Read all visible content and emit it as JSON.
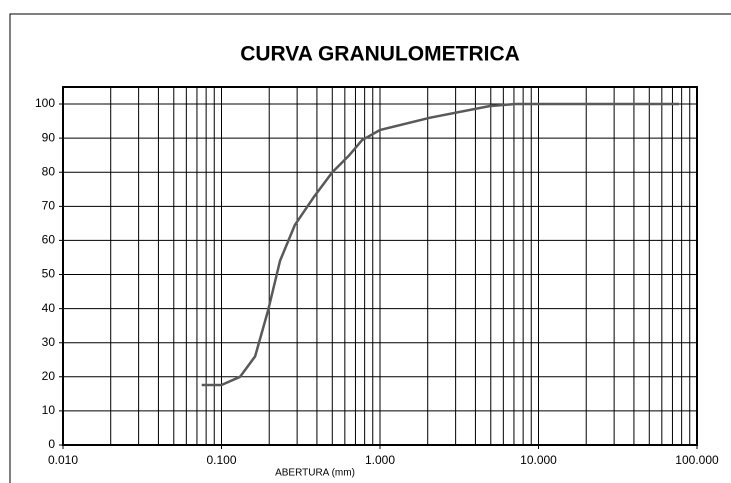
{
  "chart_data": {
    "type": "line",
    "title": "CURVA GRANULOMETRICA",
    "xlabel": "ABERTURA (mm)",
    "xscale": "log",
    "xlim": [
      0.01,
      100
    ],
    "ylim": [
      0,
      105
    ],
    "xticks": [
      {
        "value": 0.01,
        "label": "0.010"
      },
      {
        "value": 0.1,
        "label": "0.100"
      },
      {
        "value": 1,
        "label": "1.000"
      },
      {
        "value": 10,
        "label": "10.000"
      },
      {
        "value": 100,
        "label": "100.000"
      }
    ],
    "xminorticks": [
      0.02,
      0.03,
      0.04,
      0.05,
      0.06,
      0.07,
      0.08,
      0.09,
      0.2,
      0.3,
      0.4,
      0.5,
      0.6,
      0.7,
      0.8,
      0.9,
      2,
      3,
      4,
      5,
      6,
      7,
      8,
      9,
      20,
      30,
      40,
      50,
      60,
      70,
      80,
      90
    ],
    "yticks": [
      0,
      10,
      20,
      30,
      40,
      50,
      60,
      70,
      80,
      90,
      100
    ],
    "grid": true,
    "color": "#595959",
    "x": [
      0.075,
      0.1,
      0.131,
      0.163,
      0.197,
      0.234,
      0.29,
      0.386,
      0.5,
      0.64,
      0.77,
      1.0,
      2.07,
      4.9,
      7.1,
      77
    ],
    "values": [
      17.6,
      17.6,
      20,
      26,
      39.6,
      54,
      64.5,
      73,
      80,
      85,
      89.4,
      92.4,
      96,
      99.4,
      100,
      100
    ]
  }
}
